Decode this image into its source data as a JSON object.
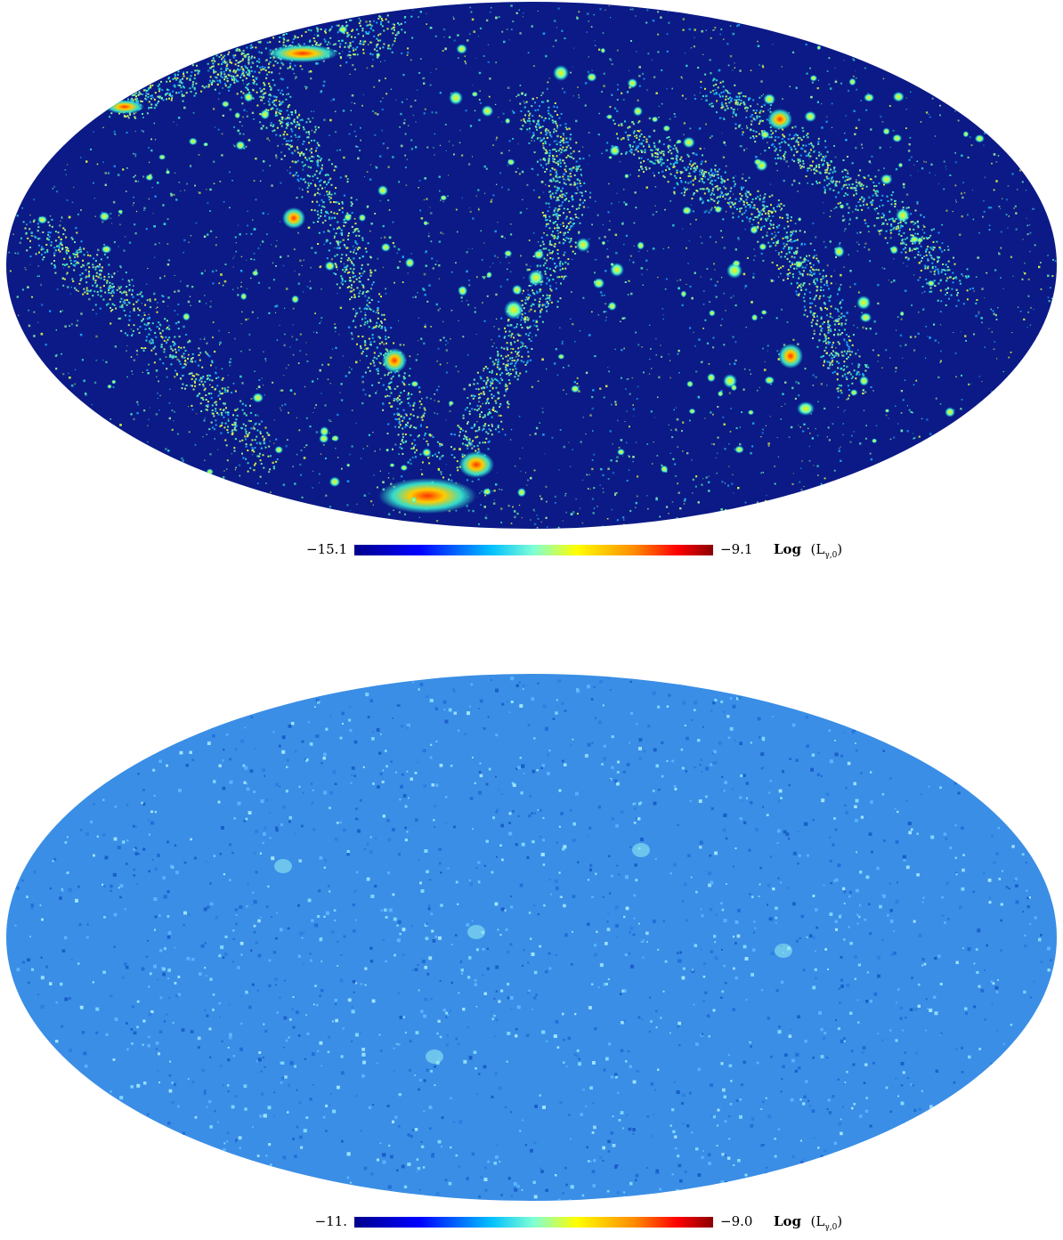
{
  "maps": [
    {
      "name": "resolved-halos-map",
      "projection": "Mollweide",
      "colormap": [
        "#00008b",
        "#0000ff",
        "#00bfff",
        "#7fffd4",
        "#ffff00",
        "#ff8c00",
        "#ff0000",
        "#8b0000"
      ],
      "colorbar": {
        "min_label": "−15.1",
        "max_label": "−9.1",
        "quantity_label": "Log",
        "quantity_symbol": "(L",
        "quantity_sub": "γ,0",
        "quantity_close": ")"
      }
    },
    {
      "name": "unresolved-halos-map",
      "projection": "Mollweide",
      "colormap": [
        "#00008b",
        "#0000ff",
        "#00bfff",
        "#7fffd4",
        "#ffff00",
        "#ff8c00",
        "#ff0000",
        "#8b0000"
      ],
      "colorbar": {
        "min_label": "−11.",
        "max_label": "−9.0",
        "quantity_label": "Log",
        "quantity_symbol": "(L",
        "quantity_sub": "γ,0",
        "quantity_close": ")"
      }
    }
  ]
}
